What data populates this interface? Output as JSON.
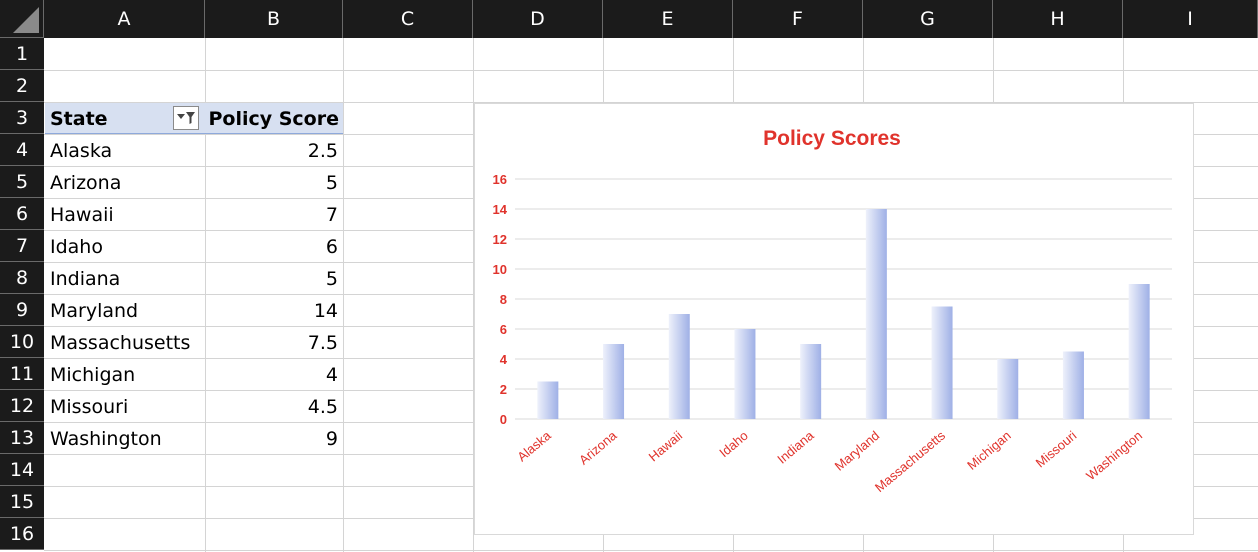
{
  "columns": [
    "A",
    "B",
    "C",
    "D",
    "E",
    "F",
    "G",
    "H",
    "I"
  ],
  "rows": [
    "1",
    "2",
    "3",
    "4",
    "5",
    "6",
    "7",
    "8",
    "9",
    "10",
    "11",
    "12",
    "13",
    "14",
    "15",
    "16"
  ],
  "table": {
    "header_state": "State",
    "header_score": "Policy Score",
    "rows": [
      {
        "state": "Alaska",
        "score": "2.5"
      },
      {
        "state": "Arizona",
        "score": "5"
      },
      {
        "state": "Hawaii",
        "score": "7"
      },
      {
        "state": "Idaho",
        "score": "6"
      },
      {
        "state": "Indiana",
        "score": "5"
      },
      {
        "state": "Maryland",
        "score": "14"
      },
      {
        "state": "Massachusetts",
        "score": "7.5"
      },
      {
        "state": "Michigan",
        "score": "4"
      },
      {
        "state": "Missouri",
        "score": "4.5"
      },
      {
        "state": "Washington",
        "score": "9"
      }
    ]
  },
  "icons": {
    "filter": "filter-dropdown-icon",
    "select_all": "select-all-triangle-icon"
  },
  "colors": {
    "header_bg": "#1b1b1b",
    "table_header_bg": "#d7e0f1",
    "chart_text": "#e0332c",
    "bar_light": "#eef1fb",
    "bar_dark": "#9fb0e6"
  },
  "chart_data": {
    "type": "bar",
    "title": "Policy Scores",
    "categories": [
      "Alaska",
      "Arizona",
      "Hawaii",
      "Idaho",
      "Indiana",
      "Maryland",
      "Massachusetts",
      "Michigan",
      "Missouri",
      "Washington"
    ],
    "values": [
      2.5,
      5,
      7,
      6,
      5,
      14,
      7.5,
      4,
      4.5,
      9
    ],
    "yticks": [
      "0",
      "2",
      "4",
      "6",
      "8",
      "10",
      "12",
      "14",
      "16"
    ],
    "ylim": [
      0,
      16
    ],
    "grid": true,
    "legend": "none"
  }
}
